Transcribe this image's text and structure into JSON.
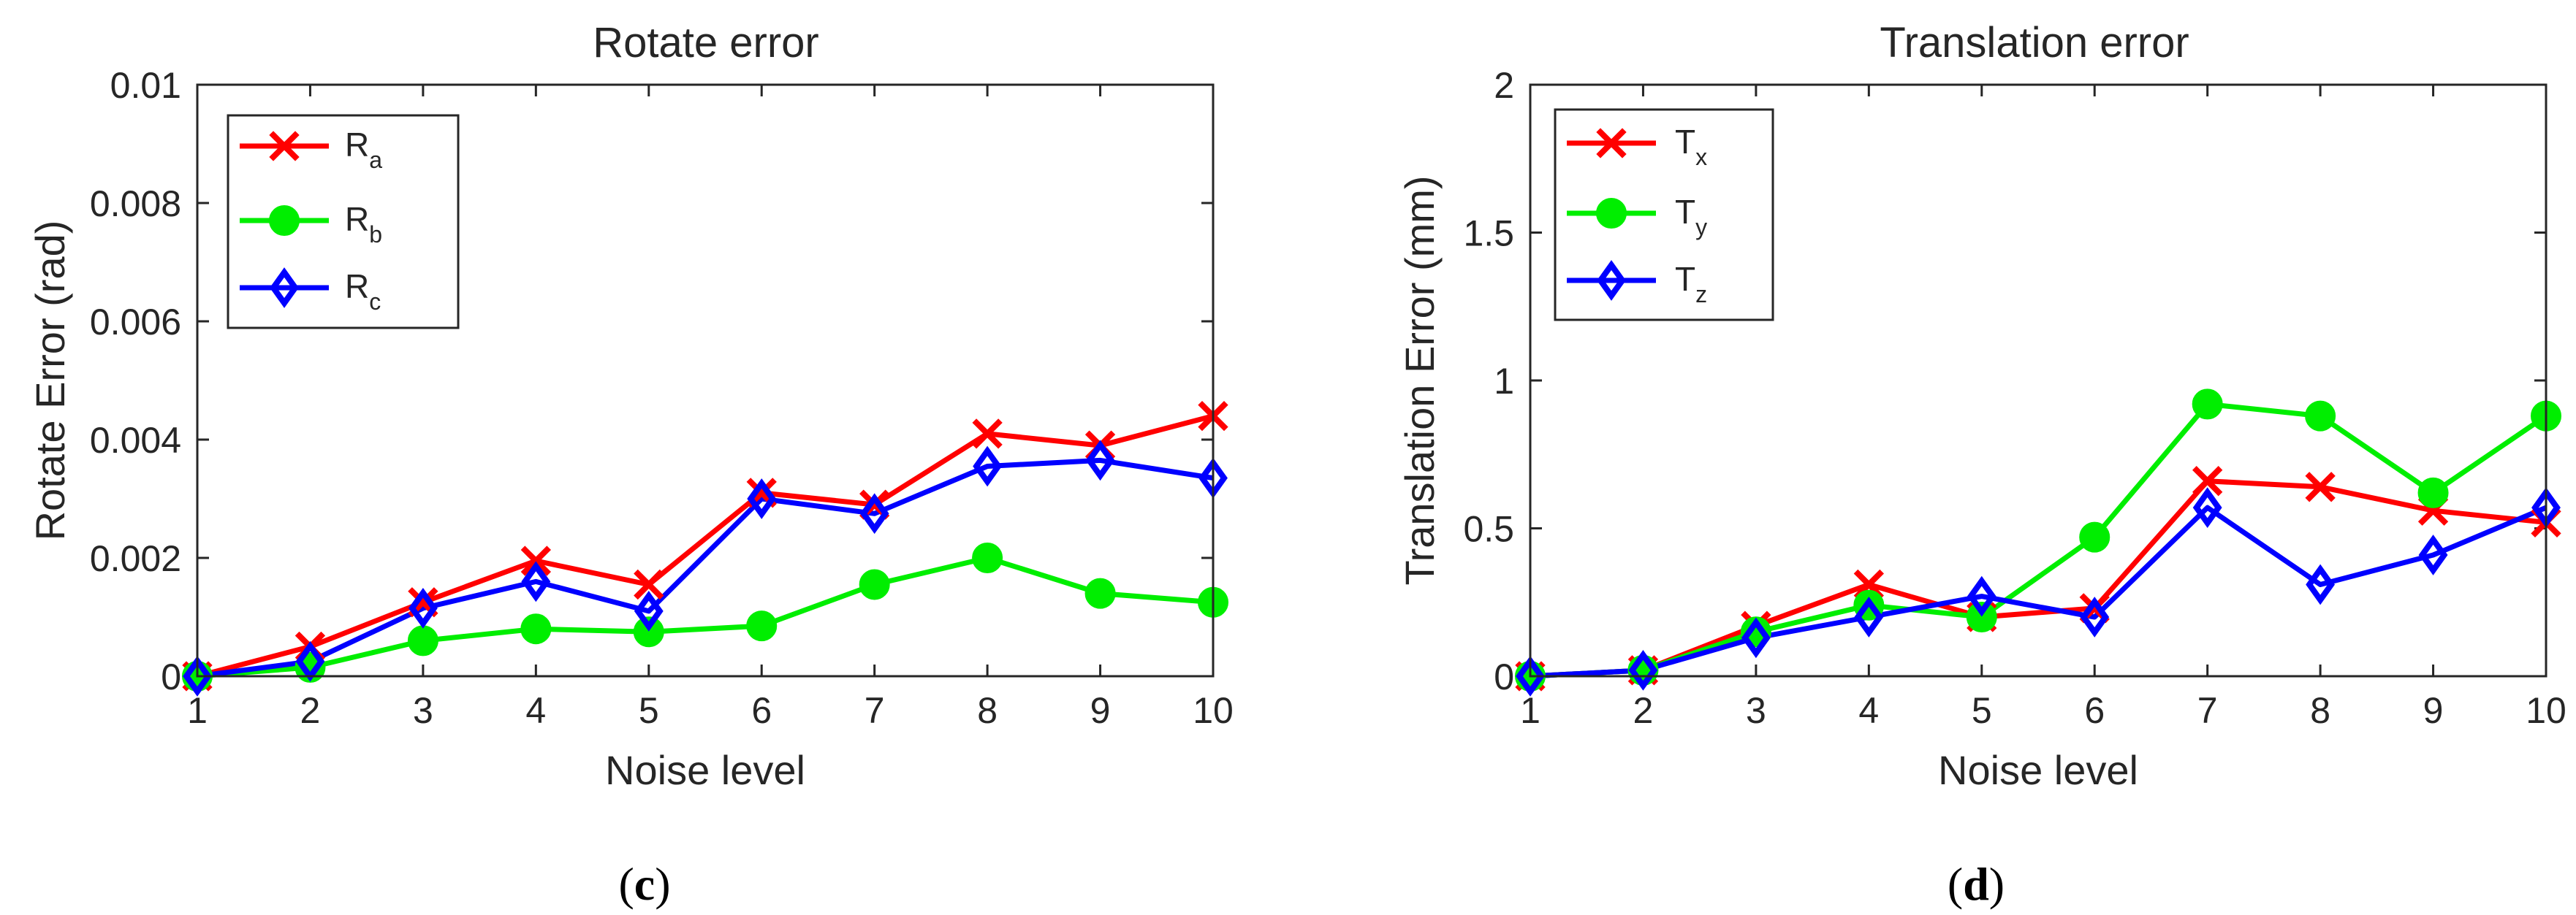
{
  "chart_data": [
    {
      "type": "line",
      "title": "Rotate error",
      "xlabel": "Noise level",
      "ylabel": "Rotate Error (rad)",
      "x": [
        1,
        2,
        3,
        4,
        5,
        6,
        7,
        8,
        9,
        10
      ],
      "xlim": [
        1,
        10
      ],
      "ylim": [
        0,
        0.01
      ],
      "xticks": [
        "1",
        "2",
        "3",
        "4",
        "5",
        "6",
        "7",
        "8",
        "9",
        "10"
      ],
      "yticks": [
        {
          "value": 0,
          "label": "0"
        },
        {
          "value": 0.002,
          "label": "0.002"
        },
        {
          "value": 0.004,
          "label": "0.004"
        },
        {
          "value": 0.006,
          "label": "0.006"
        },
        {
          "value": 0.008,
          "label": "0.008"
        },
        {
          "value": 0.01,
          "label": "0.01"
        }
      ],
      "grid": false,
      "legend_position": "top-left",
      "caption": "(c)",
      "series": [
        {
          "name": "R",
          "subscript": "a",
          "color": "#ff0000",
          "marker": "x",
          "values": [
            0.0,
            0.0005,
            0.00125,
            0.00195,
            0.00155,
            0.0031,
            0.0029,
            0.0041,
            0.0039,
            0.0044
          ]
        },
        {
          "name": "R",
          "subscript": "b",
          "color": "#00ee00",
          "marker": "circle",
          "values": [
            0.0,
            0.00015,
            0.0006,
            0.0008,
            0.00075,
            0.00085,
            0.00155,
            0.002,
            0.0014,
            0.00125
          ]
        },
        {
          "name": "R",
          "subscript": "c",
          "color": "#0000ff",
          "marker": "diamond",
          "values": [
            0.0,
            0.00025,
            0.00115,
            0.0016,
            0.0011,
            0.003,
            0.00275,
            0.00355,
            0.00365,
            0.00335
          ]
        }
      ]
    },
    {
      "type": "line",
      "title": "Translation error",
      "xlabel": "Noise level",
      "ylabel": "Translation Error (mm)",
      "x": [
        1,
        2,
        3,
        4,
        5,
        6,
        7,
        8,
        9,
        10
      ],
      "xlim": [
        1,
        10
      ],
      "ylim": [
        0,
        2
      ],
      "xticks": [
        "1",
        "2",
        "3",
        "4",
        "5",
        "6",
        "7",
        "8",
        "9",
        "10"
      ],
      "yticks": [
        {
          "value": 0,
          "label": "0"
        },
        {
          "value": 0.5,
          "label": "0.5"
        },
        {
          "value": 1,
          "label": "1"
        },
        {
          "value": 1.5,
          "label": "1.5"
        },
        {
          "value": 2,
          "label": "2"
        }
      ],
      "grid": false,
      "legend_position": "top-left",
      "caption": "(d)",
      "series": [
        {
          "name": "T",
          "subscript": "x",
          "color": "#ff0000",
          "marker": "x",
          "values": [
            0.0,
            0.02,
            0.17,
            0.31,
            0.2,
            0.23,
            0.66,
            0.64,
            0.56,
            0.52
          ]
        },
        {
          "name": "T",
          "subscript": "y",
          "color": "#00ee00",
          "marker": "circle",
          "values": [
            0.0,
            0.02,
            0.15,
            0.24,
            0.2,
            0.47,
            0.92,
            0.88,
            0.62,
            0.88
          ]
        },
        {
          "name": "T",
          "subscript": "z",
          "color": "#0000ff",
          "marker": "diamond",
          "values": [
            0.0,
            0.02,
            0.13,
            0.2,
            0.27,
            0.2,
            0.57,
            0.31,
            0.41,
            0.57
          ]
        }
      ]
    }
  ]
}
